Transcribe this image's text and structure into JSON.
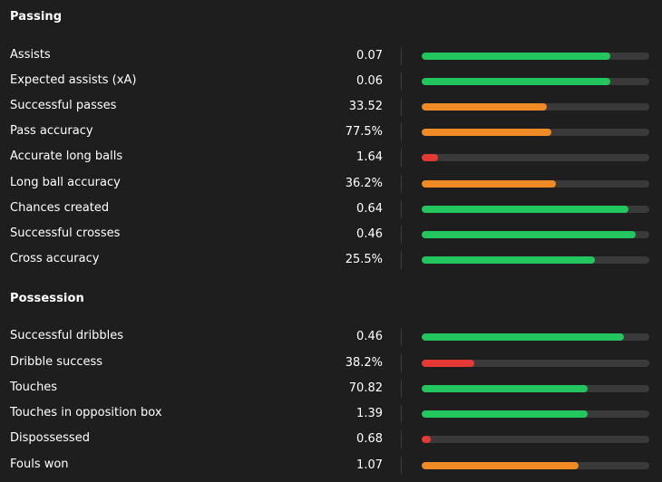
{
  "sections": [
    {
      "title": "Passing",
      "rows": [
        {
          "label": "Assists",
          "value": "0.07",
          "fill": 0.83,
          "color": "#22c55e"
        },
        {
          "label": "Expected assists (xA)",
          "value": "0.06",
          "fill": 0.83,
          "color": "#22c55e"
        },
        {
          "label": "Successful passes",
          "value": "33.52",
          "fill": 0.55,
          "color": "#f08a24"
        },
        {
          "label": "Pass accuracy",
          "value": "77.5%",
          "fill": 0.57,
          "color": "#f08a24"
        },
        {
          "label": "Accurate long balls",
          "value": "1.64",
          "fill": 0.07,
          "color": "#e53935"
        },
        {
          "label": "Long ball accuracy",
          "value": "36.2%",
          "fill": 0.59,
          "color": "#f08a24"
        },
        {
          "label": "Chances created",
          "value": "0.64",
          "fill": 0.91,
          "color": "#22c55e"
        },
        {
          "label": "Successful crosses",
          "value": "0.46",
          "fill": 0.94,
          "color": "#22c55e"
        },
        {
          "label": "Cross accuracy",
          "value": "25.5%",
          "fill": 0.76,
          "color": "#22c55e"
        }
      ]
    },
    {
      "title": "Possession",
      "rows": [
        {
          "label": "Successful dribbles",
          "value": "0.46",
          "fill": 0.89,
          "color": "#22c55e"
        },
        {
          "label": "Dribble success",
          "value": "38.2%",
          "fill": 0.23,
          "color": "#e53935"
        },
        {
          "label": "Touches",
          "value": "70.82",
          "fill": 0.73,
          "color": "#22c55e"
        },
        {
          "label": "Touches in opposition box",
          "value": "1.39",
          "fill": 0.73,
          "color": "#22c55e"
        },
        {
          "label": "Dispossessed",
          "value": "0.68",
          "fill": 0.04,
          "color": "#e53935"
        },
        {
          "label": "Fouls won",
          "value": "1.07",
          "fill": 0.69,
          "color": "#f08a24"
        }
      ]
    }
  ]
}
